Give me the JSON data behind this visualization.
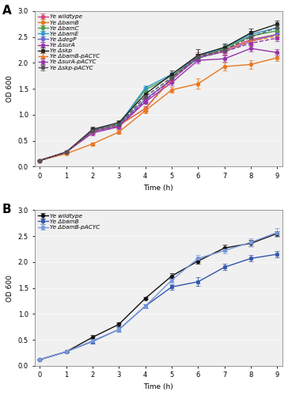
{
  "time": [
    0,
    1,
    2,
    3,
    4,
    5,
    6,
    7,
    8,
    9
  ],
  "panel_A": {
    "series": [
      {
        "label": "Ye wildtype",
        "color": "#d4447c",
        "marker": "o",
        "linestyle": "-",
        "values": [
          0.12,
          0.28,
          0.7,
          0.8,
          1.12,
          1.72,
          2.15,
          2.25,
          2.45,
          2.55
        ],
        "errors": [
          0.005,
          0.01,
          0.04,
          0.04,
          0.04,
          0.05,
          0.06,
          0.06,
          0.06,
          0.05
        ]
      },
      {
        "label": "Ye ΔbamB",
        "color": "#e87820",
        "marker": "o",
        "linestyle": "-",
        "values": [
          0.12,
          0.25,
          0.44,
          0.67,
          1.08,
          1.48,
          1.6,
          1.93,
          1.97,
          2.1
        ],
        "errors": [
          0.005,
          0.01,
          0.03,
          0.04,
          0.05,
          0.06,
          0.1,
          0.08,
          0.08,
          0.07
        ]
      },
      {
        "label": "Ye ΔbamC",
        "color": "#4a9e4a",
        "marker": "o",
        "linestyle": "-",
        "values": [
          0.12,
          0.28,
          0.68,
          0.8,
          1.48,
          1.75,
          2.08,
          2.28,
          2.52,
          2.62
        ],
        "errors": [
          0.005,
          0.01,
          0.04,
          0.04,
          0.05,
          0.05,
          0.06,
          0.06,
          0.06,
          0.06
        ]
      },
      {
        "label": "Ye ΔbamE",
        "color": "#3399cc",
        "marker": "o",
        "linestyle": "-",
        "values": [
          0.12,
          0.28,
          0.7,
          0.82,
          1.52,
          1.78,
          2.12,
          2.3,
          2.55,
          2.68
        ],
        "errors": [
          0.005,
          0.01,
          0.04,
          0.04,
          0.05,
          0.05,
          0.06,
          0.06,
          0.06,
          0.06
        ]
      },
      {
        "label": "Ye ΔdegP",
        "color": "#6666cc",
        "marker": "o",
        "linestyle": "-",
        "values": [
          0.12,
          0.28,
          0.68,
          0.8,
          1.3,
          1.68,
          2.1,
          2.22,
          2.42,
          2.55
        ],
        "errors": [
          0.005,
          0.01,
          0.04,
          0.04,
          0.04,
          0.05,
          0.06,
          0.06,
          0.06,
          0.06
        ]
      },
      {
        "label": "Ye ΔsurA",
        "color": "#9933aa",
        "marker": "o",
        "linestyle": "-",
        "values": [
          0.12,
          0.28,
          0.65,
          0.77,
          1.25,
          1.62,
          2.05,
          2.08,
          2.28,
          2.2
        ],
        "errors": [
          0.005,
          0.01,
          0.04,
          0.04,
          0.04,
          0.05,
          0.06,
          0.06,
          0.06,
          0.06
        ]
      },
      {
        "label": "Ye Δskp",
        "color": "#222222",
        "marker": "s",
        "linestyle": "-",
        "values": [
          0.12,
          0.28,
          0.72,
          0.85,
          1.4,
          1.78,
          2.15,
          2.3,
          2.58,
          2.75
        ],
        "errors": [
          0.005,
          0.01,
          0.05,
          0.05,
          0.06,
          0.07,
          0.12,
          0.08,
          0.08,
          0.07
        ]
      },
      {
        "label": "Ye ΔbamB-pACYC",
        "color": "#e87820",
        "marker": "^",
        "linestyle": "--",
        "values": [
          0.12,
          0.28,
          0.68,
          0.8,
          1.12,
          1.68,
          2.12,
          2.22,
          2.42,
          2.52
        ],
        "errors": [
          0.005,
          0.01,
          0.04,
          0.04,
          0.04,
          0.05,
          0.06,
          0.06,
          0.06,
          0.06
        ]
      },
      {
        "label": "Ye ΔsurA-pACYC",
        "color": "#9933aa",
        "marker": "s",
        "linestyle": "--",
        "values": [
          0.12,
          0.28,
          0.68,
          0.78,
          1.28,
          1.68,
          2.1,
          2.22,
          2.38,
          2.48
        ],
        "errors": [
          0.005,
          0.01,
          0.04,
          0.04,
          0.04,
          0.05,
          0.06,
          0.06,
          0.06,
          0.06
        ]
      },
      {
        "label": "Ye Δskp-pACYC",
        "color": "#555555",
        "marker": "s",
        "linestyle": "--",
        "values": [
          0.12,
          0.28,
          0.7,
          0.82,
          1.35,
          1.72,
          2.12,
          2.25,
          2.5,
          2.68
        ],
        "errors": [
          0.005,
          0.01,
          0.04,
          0.04,
          0.04,
          0.05,
          0.06,
          0.06,
          0.06,
          0.06
        ]
      }
    ]
  },
  "panel_B": {
    "series": [
      {
        "label": "Ye wildtype",
        "color": "#111111",
        "marker": "o",
        "linestyle": "-",
        "values": [
          0.12,
          0.27,
          0.55,
          0.8,
          1.3,
          1.73,
          2.02,
          2.27,
          2.36,
          2.55
        ],
        "errors": [
          0.005,
          0.01,
          0.04,
          0.04,
          0.02,
          0.05,
          0.05,
          0.06,
          0.06,
          0.05
        ]
      },
      {
        "label": "Ye ΔbamB",
        "color": "#3355aa",
        "marker": "s",
        "linestyle": "-",
        "values": [
          0.12,
          0.27,
          0.47,
          0.7,
          1.15,
          1.52,
          1.62,
          1.9,
          2.07,
          2.15
        ],
        "errors": [
          0.005,
          0.01,
          0.04,
          0.04,
          0.04,
          0.05,
          0.08,
          0.06,
          0.06,
          0.06
        ]
      },
      {
        "label": "Ye ΔbamB-pACYC",
        "color": "#7799dd",
        "marker": "s",
        "linestyle": "-",
        "values": [
          0.12,
          0.27,
          0.48,
          0.7,
          1.15,
          1.65,
          2.07,
          2.22,
          2.38,
          2.57
        ],
        "errors": [
          0.005,
          0.01,
          0.04,
          0.04,
          0.04,
          0.05,
          0.06,
          0.06,
          0.08,
          0.08
        ]
      }
    ]
  },
  "ylim": [
    0.0,
    3.0
  ],
  "yticks": [
    0.0,
    0.5,
    1.0,
    1.5,
    2.0,
    2.5,
    3.0
  ],
  "xlim": [
    -0.2,
    9.2
  ],
  "xticks": [
    0,
    1,
    2,
    3,
    4,
    5,
    6,
    7,
    8,
    9
  ],
  "xlabel": "Time (h)",
  "ylabel": "OD 600",
  "label_A": "A",
  "label_B": "B",
  "markersize": 3.5,
  "linewidth": 1.0,
  "capsize": 2,
  "elinewidth": 0.7,
  "legend_fontsize": 5.2,
  "axis_fontsize": 6.5,
  "tick_fontsize": 6.0,
  "label_fontsize": 11,
  "bg_color": "#f0f0f0"
}
